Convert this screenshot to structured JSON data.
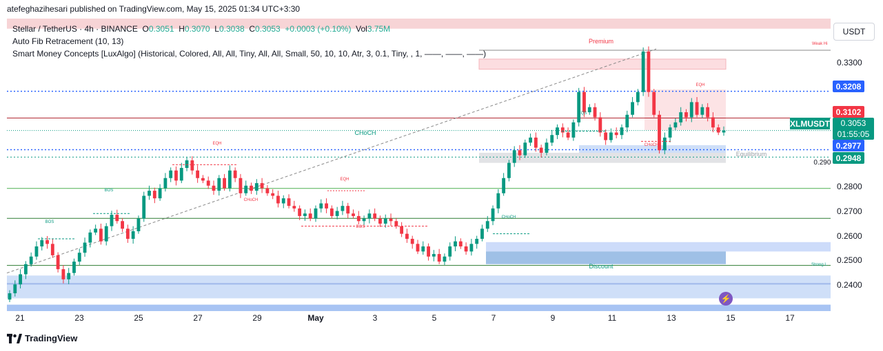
{
  "header": {
    "publisher_line": "atefeghazihesari published on TradingView.com, May 15, 2025 01:34 UTC+3:30"
  },
  "legend": {
    "title": "Stellar / TetherUS · 4h · BINANCE",
    "o_label": "O",
    "o": "0.3051",
    "h_label": "H",
    "h": "0.3070",
    "l_label": "L",
    "l": "0.3038",
    "c_label": "C",
    "c": "0.3053",
    "change": "+0.0003 (+0.10%)",
    "vol_label": "Vol",
    "vol": "3.75M",
    "indicator1": "Auto Fib Retracement (10, 13)",
    "indicator2": "Smart Money Concepts [LuxAlgo] (Historical, Colored, All, All, Tiny, All, All, Small, 50, 10, 10, Atr, 3, 0.1, Tiny, , 1, ——, ——, ——)"
  },
  "price_axis": {
    "currency": "USDT",
    "ticks": [
      "0.3300",
      "0.2800",
      "0.2700",
      "0.2600",
      "0.2500",
      "0.2400"
    ],
    "tags": [
      {
        "value": "0.3208",
        "color": "#2962ff"
      },
      {
        "value": "0.3102",
        "color": "#f23645"
      },
      {
        "value": "0.2977",
        "color": "#2962ff"
      },
      {
        "value": "0.2948",
        "color": "#089981"
      }
    ],
    "symbol": "XLMUSDT",
    "current_price": "0.3053",
    "countdown": "01:55:05"
  },
  "time_axis": {
    "labels": [
      "21",
      "23",
      "25",
      "27",
      "29",
      "May",
      "3",
      "5",
      "7",
      "9",
      "11",
      "13",
      "15",
      "17"
    ]
  },
  "annotations": {
    "premium": "Premium",
    "equilibrium": "Equilibrium",
    "discount": "Discount",
    "choch_main": "CHoCH",
    "weak_high": "Weak Hi",
    "strong_low": "Strong L",
    "bos": "BOS",
    "choch_small": "CHoCH",
    "eqh": "EQH",
    "eqs": "EQS",
    "grid_partial": "0.2900"
  },
  "colors": {
    "up": "#089981",
    "down": "#f23645",
    "accent": "#2962ff"
  },
  "footer": {
    "brand": "TradingView"
  },
  "chart_data": {
    "type": "candlestick",
    "ylim": [
      0.2345,
      0.3495
    ],
    "x_range": [
      "Apr 20",
      "May 17"
    ],
    "candles_close_series": [
      0.241,
      0.2445,
      0.2485,
      0.2525,
      0.2555,
      0.2595,
      0.262,
      0.2605,
      0.256,
      0.2505,
      0.2465,
      0.249,
      0.2535,
      0.257,
      0.261,
      0.265,
      0.2665,
      0.2615,
      0.2675,
      0.272,
      0.2695,
      0.2665,
      0.2625,
      0.2655,
      0.2705,
      0.2795,
      0.2815,
      0.2785,
      0.2825,
      0.2865,
      0.2895,
      0.2855,
      0.2905,
      0.2935,
      0.2895,
      0.2865,
      0.2855,
      0.2835,
      0.2815,
      0.2865,
      0.2825,
      0.2895,
      0.2865,
      0.2805,
      0.2835,
      0.2815,
      0.2845,
      0.2825,
      0.2805,
      0.2795,
      0.2765,
      0.2785,
      0.2755,
      0.2745,
      0.2715,
      0.2725,
      0.2705,
      0.2745,
      0.2765,
      0.2745,
      0.2715,
      0.2735,
      0.2755,
      0.2725,
      0.2715,
      0.2695,
      0.2705,
      0.2725,
      0.2705,
      0.2685,
      0.2705,
      0.2695,
      0.2675,
      0.2645,
      0.2625,
      0.2605,
      0.2575,
      0.2595,
      0.2555,
      0.2565,
      0.2535,
      0.2555,
      0.2595,
      0.2615,
      0.2595,
      0.2575,
      0.2605,
      0.2625,
      0.2665,
      0.2695,
      0.2745,
      0.2805,
      0.2865,
      0.2925,
      0.2975,
      0.2955,
      0.3005,
      0.3025,
      0.2985,
      0.2965,
      0.3005,
      0.3035,
      0.3065,
      0.3045,
      0.3025,
      0.3085,
      0.3205,
      0.3125,
      0.3145,
      0.3105,
      0.3045,
      0.3015,
      0.3045,
      0.3035,
      0.3065,
      0.3115,
      0.3165,
      0.3205,
      0.3365,
      0.3205,
      0.3115,
      0.2975,
      0.3025,
      0.3065,
      0.3085,
      0.3125,
      0.3105,
      0.3165,
      0.3115,
      0.3145,
      0.3105,
      0.3065,
      0.3045,
      0.3053
    ]
  }
}
